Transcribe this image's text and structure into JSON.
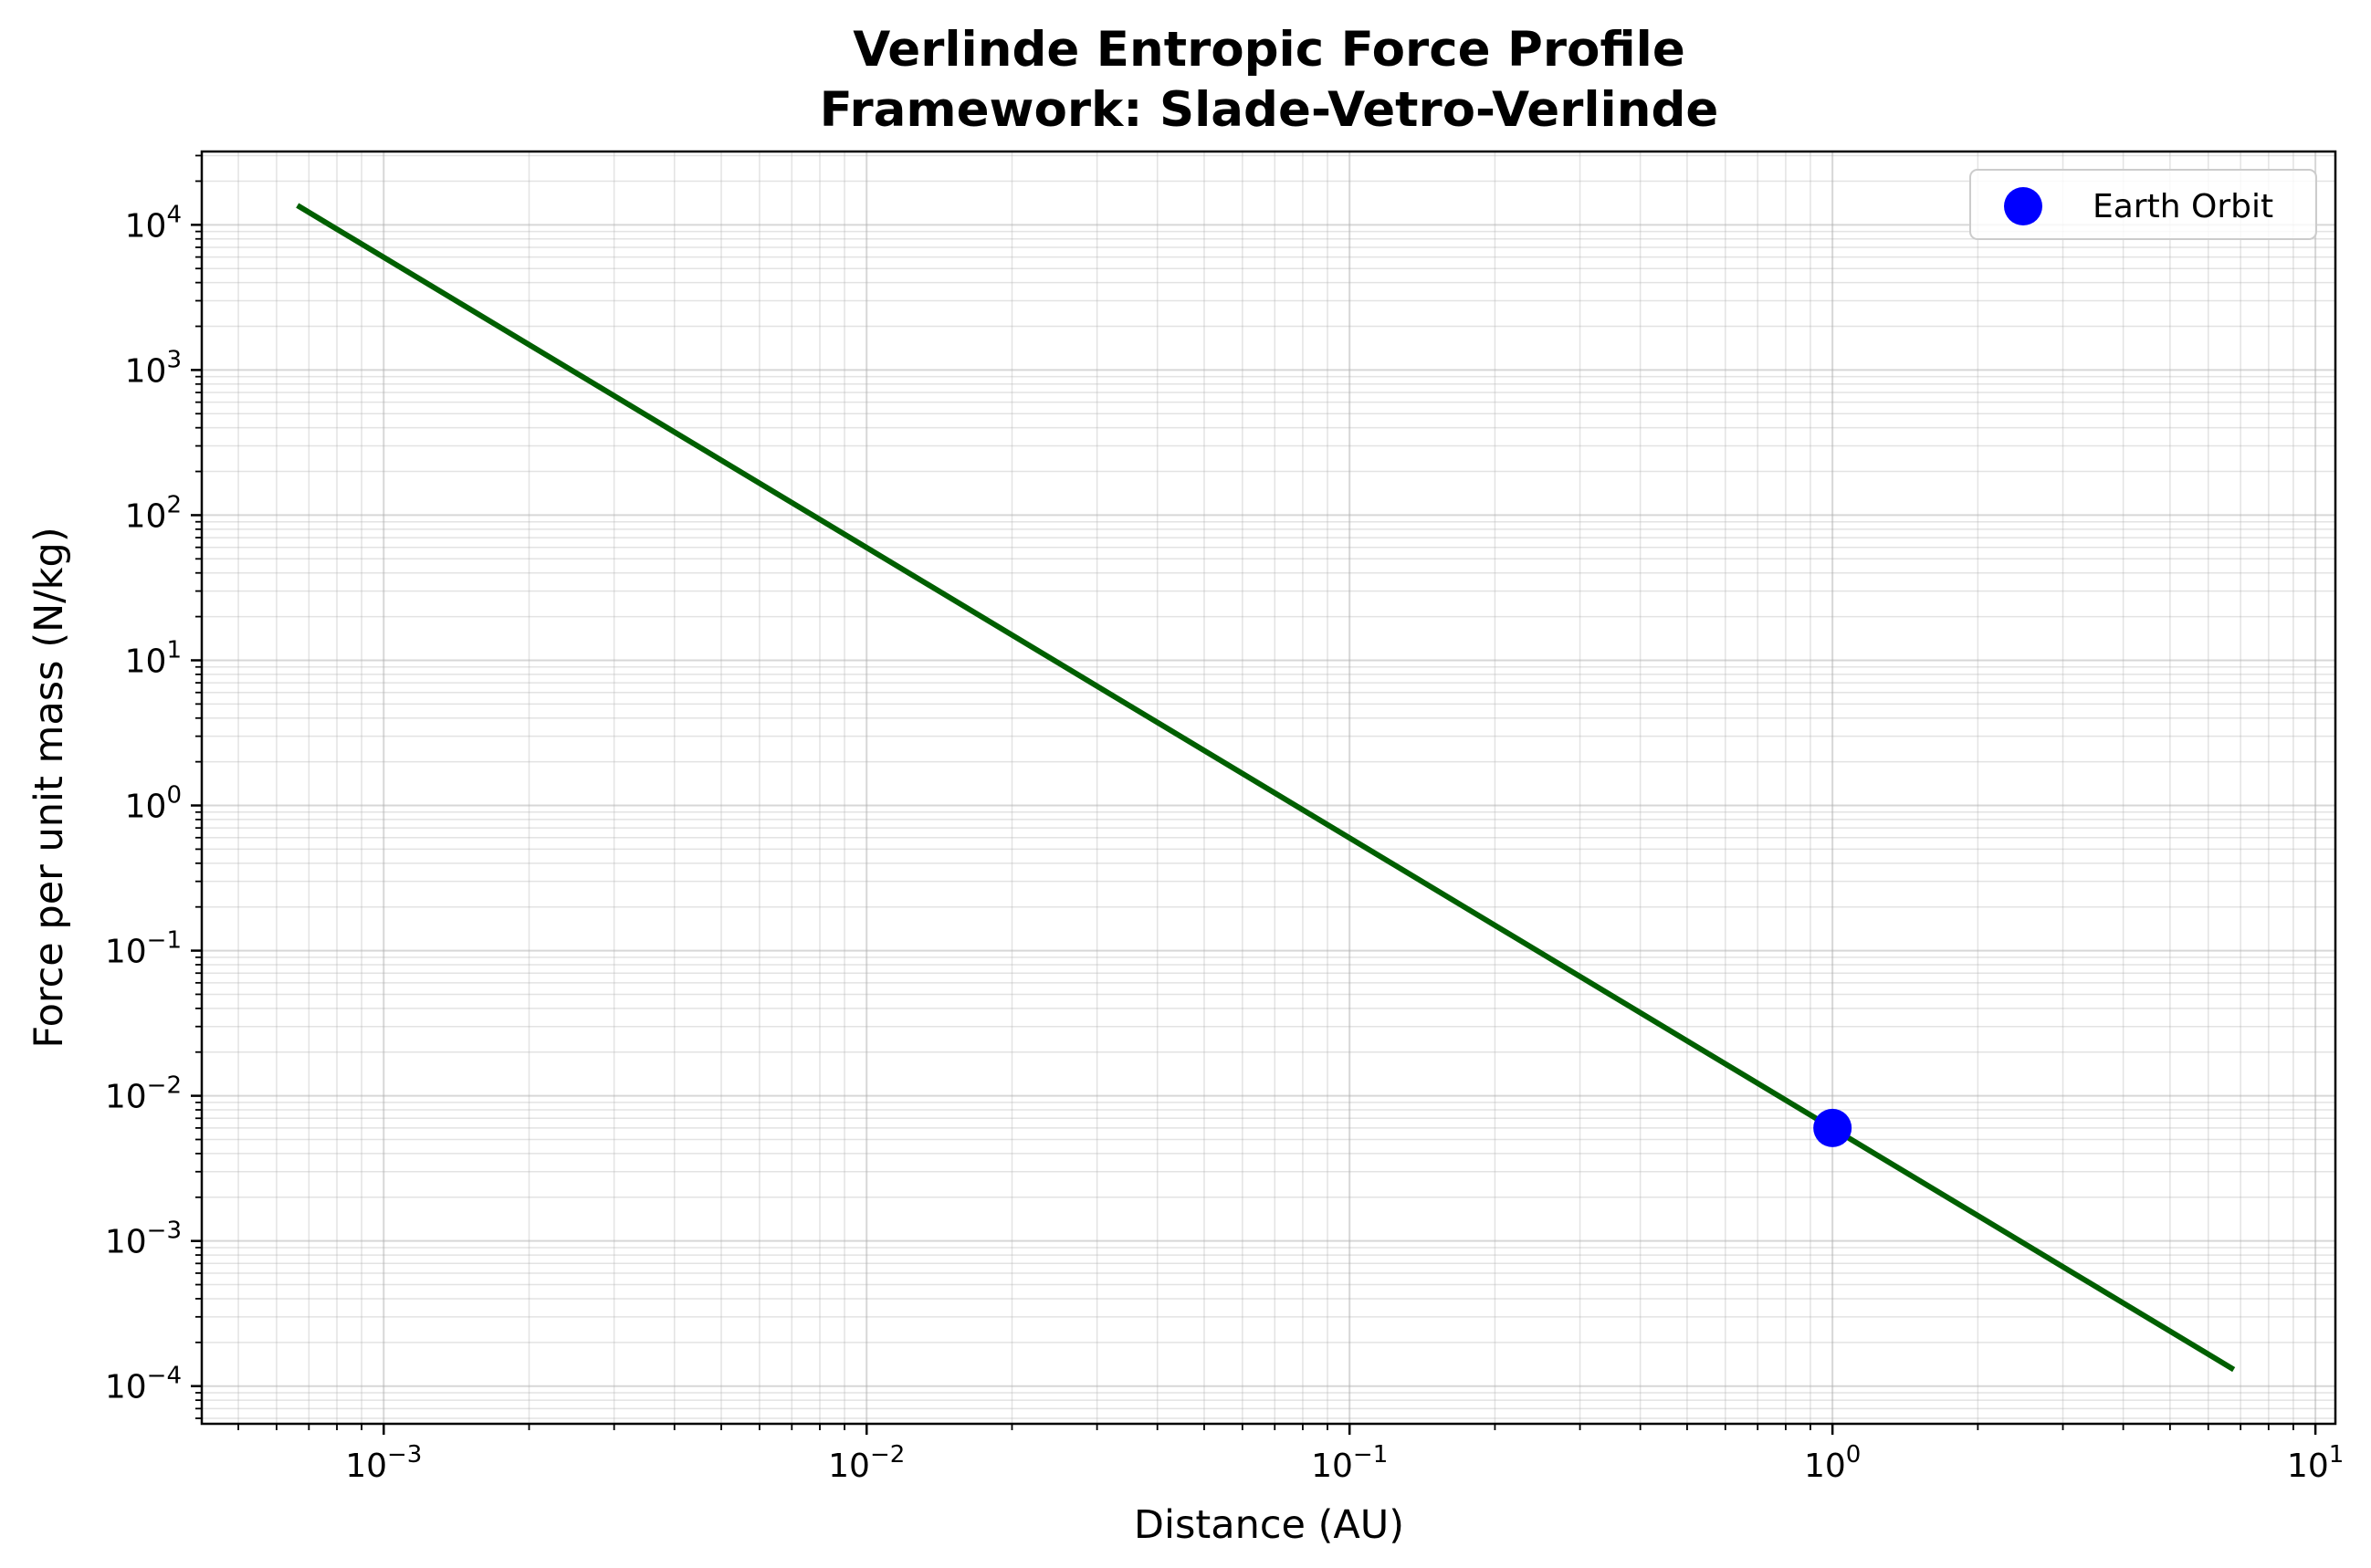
{
  "chart_data": {
    "type": "line",
    "title_lines": [
      "Verlinde Entropic Force Profile",
      "Framework: Slade-Vetro-Verlinde"
    ],
    "xlabel": "Distance (AU)",
    "ylabel": "Force per unit mass (N/kg)",
    "x_scale": "log",
    "y_scale": "log",
    "xlim": [
      0.00042,
      11
    ],
    "ylim": [
      5.5e-05,
      32000
    ],
    "x_tick_exponents": [
      -3,
      -2,
      -1,
      0,
      1
    ],
    "y_tick_exponents": [
      -4,
      -3,
      -2,
      -1,
      0,
      1,
      2,
      3,
      4
    ],
    "x_tick_labels": [
      "10",
      "10",
      "10",
      "10",
      "10"
    ],
    "y_tick_labels": [
      "10",
      "10",
      "10",
      "10",
      "10",
      "10",
      "10",
      "10",
      "10"
    ],
    "grid": true,
    "legend_position": "top-right",
    "series": [
      {
        "kind": "line",
        "color": "#005f00",
        "x": [
          0.00067,
          6.7
        ],
        "y": [
          13300,
          0.000133
        ]
      },
      {
        "kind": "marker",
        "name": "Earth Orbit",
        "color": "#0000ff",
        "x": [
          1.0
        ],
        "y": [
          0.006
        ]
      }
    ]
  }
}
